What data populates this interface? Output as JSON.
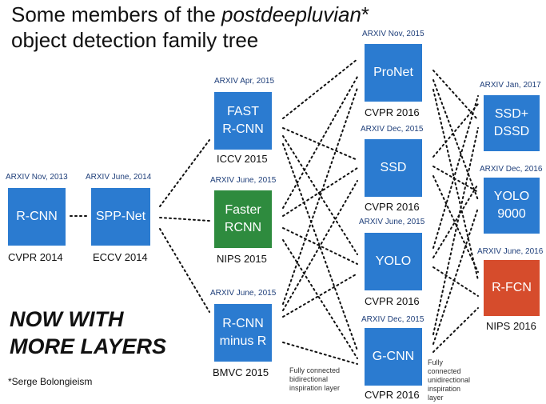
{
  "title": {
    "line1_prefix": "Some members of the ",
    "line1_italic": "postdeepluvian",
    "line1_suffix": "*",
    "line2": "object detection family tree"
  },
  "nodes": {
    "rcnn": {
      "label": "R-CNN",
      "arxiv": "ARXIV Nov, 2013",
      "venue": "CVPR 2014"
    },
    "sppnet": {
      "label": "SPP-Net",
      "arxiv": "ARXIV June, 2014",
      "venue": "ECCV 2014"
    },
    "fastrcnn": {
      "label": "FAST\nR-CNN",
      "arxiv": "ARXIV Apr, 2015",
      "venue": "ICCV 2015"
    },
    "fasterrcnn": {
      "label": "Faster\nRCNN",
      "arxiv": "ARXIV June, 2015",
      "venue": "NIPS 2015"
    },
    "rcnnminusr": {
      "label": "R-CNN\nminus R",
      "arxiv": "ARXIV June, 2015",
      "venue": "BMVC 2015"
    },
    "pronet": {
      "label": "ProNet",
      "arxiv": "ARXIV Nov, 2015",
      "venue": "CVPR 2016"
    },
    "ssd": {
      "label": "SSD",
      "arxiv": "ARXIV Dec, 2015",
      "venue": "CVPR 2016"
    },
    "yolo": {
      "label": "YOLO",
      "arxiv": "ARXIV June, 2015",
      "venue": "CVPR 2016"
    },
    "gcnn": {
      "label": "G-CNN",
      "arxiv": "ARXIV Dec, 2015",
      "venue": "CVPR 2016"
    },
    "ssddssd": {
      "label": "SSD+\nDSSD",
      "arxiv": "ARXIV Jan, 2017",
      "venue": ""
    },
    "yolo9000": {
      "label": "YOLO\n9000",
      "arxiv": "ARXIV Dec, 2016",
      "venue": ""
    },
    "rfcn": {
      "label": "R-FCN",
      "arxiv": "ARXIV June, 2016",
      "venue": "NIPS 2016"
    }
  },
  "notes": {
    "bidirectional": "Fully connected\nbidirectional\ninspiration layer",
    "unidirectional": "Fully\nconnected\nunidirectional\ninspiration\nlayer"
  },
  "slogan": {
    "line1": "NOW WITH",
    "line2": "MORE LAYERS"
  },
  "footnote": "*Serge Bolongieism",
  "colors": {
    "node_blue": "#2b7bd0",
    "node_green": "#2e8b3e",
    "node_red": "#d64c2c",
    "arxiv_text": "#1f3f7a"
  }
}
